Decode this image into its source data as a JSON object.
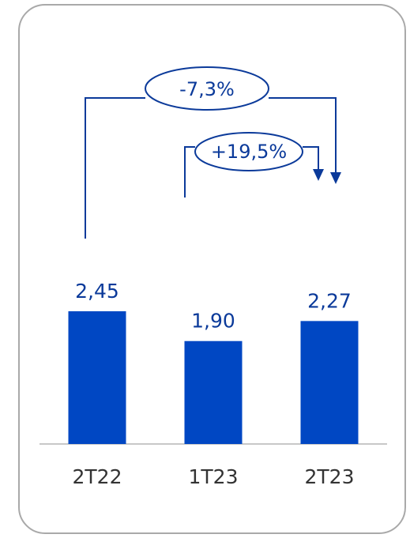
{
  "chart_data": {
    "type": "bar",
    "categories": [
      "2T22",
      "1T23",
      "2T23"
    ],
    "values": [
      2.45,
      1.9,
      2.27
    ],
    "value_labels": [
      "2,45",
      "1,90",
      "2,27"
    ],
    "title": "",
    "xlabel": "",
    "ylabel": "",
    "ylim": [
      0,
      2.45
    ],
    "grid": false,
    "legend": "none",
    "bar_color": "#0047c3",
    "annotations": [
      {
        "from": "2T22",
        "to": "2T23",
        "label": "-7,3%"
      },
      {
        "from": "1T23",
        "to": "2T23",
        "label": "+19,5%"
      }
    ]
  },
  "colors": {
    "bar": "#0047c3",
    "annotation": "#0b3a9a",
    "axis": "#c8c8c8",
    "border": "#a9a9a9"
  }
}
